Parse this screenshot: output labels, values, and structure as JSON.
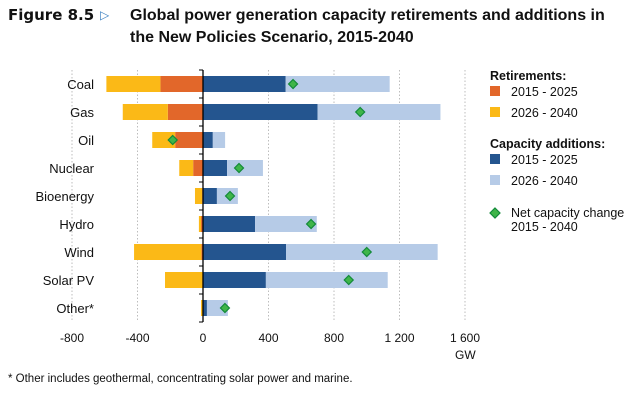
{
  "figure": {
    "label": "Figure 8.5",
    "arrow_icon": "▷",
    "title": "Global power generation capacity retirements and additions in the New Policies Scenario, 2015-2040"
  },
  "footnote": "* Other includes geothermal, concentrating solar power and marine.",
  "colors": {
    "retire_2015_2025": "#e2672a",
    "retire_2026_2040": "#fbb917",
    "add_2015_2025": "#24558f",
    "add_2026_2040": "#b6cbe7",
    "net_marker": "#3fb549",
    "net_marker_border": "#138a3a"
  },
  "chart_data": {
    "type": "bar",
    "orientation": "horizontal",
    "stacked": true,
    "title": "Global power generation capacity retirements and additions in the New Policies Scenario, 2015-2040",
    "xlabel": "GW",
    "ylabel": "",
    "xlim": [
      -800,
      1600
    ],
    "xticks": [
      -800,
      -400,
      0,
      400,
      800,
      1200,
      1600
    ],
    "xtick_labels": [
      "-800",
      "-400",
      "0",
      "400",
      "800",
      "1 200",
      "1 600"
    ],
    "grid": "vertical dotted",
    "legend_position": "right",
    "categories": [
      "Coal",
      "Gas",
      "Oil",
      "Nuclear",
      "Bioenergy",
      "Hydro",
      "Wind",
      "Solar PV",
      "Other*"
    ],
    "series": [
      {
        "name": "Retirements 2015 - 2025",
        "group": "Retirements",
        "values": [
          -260,
          -215,
          -170,
          -60,
          -5,
          -12,
          -10,
          0,
          -3
        ]
      },
      {
        "name": "Retirements 2026 - 2040",
        "group": "Retirements",
        "values": [
          -330,
          -275,
          -140,
          -85,
          -44,
          -13,
          -411,
          -232,
          -9
        ]
      },
      {
        "name": "Capacity additions 2015 - 2025",
        "group": "Capacity additions",
        "values": [
          505,
          700,
          60,
          147,
          85,
          318,
          507,
          384,
          24
        ]
      },
      {
        "name": "Capacity additions 2026 - 2040",
        "group": "Capacity additions",
        "values": [
          635,
          750,
          75,
          219,
          128,
          377,
          926,
          744,
          128
        ]
      }
    ],
    "net_change": {
      "name": "Net capacity change 2015 - 2040",
      "values": [
        550,
        960,
        -185,
        220,
        165,
        660,
        1000,
        890,
        134
      ]
    },
    "legend": {
      "retirements_heading": "Retirements:",
      "additions_heading": "Capacity additions:",
      "entries": [
        {
          "label": "2015 - 2025",
          "key": "retire_2015_2025",
          "marker": "square"
        },
        {
          "label": "2026 - 2040",
          "key": "retire_2026_2040",
          "marker": "square"
        },
        {
          "label": "2015 - 2025",
          "key": "add_2015_2025",
          "marker": "square"
        },
        {
          "label": "2026 - 2040",
          "key": "add_2026_2040",
          "marker": "square"
        },
        {
          "label": "Net capacity change",
          "label2": "2015 - 2040",
          "key": "net_marker",
          "marker": "diamond"
        }
      ]
    }
  }
}
